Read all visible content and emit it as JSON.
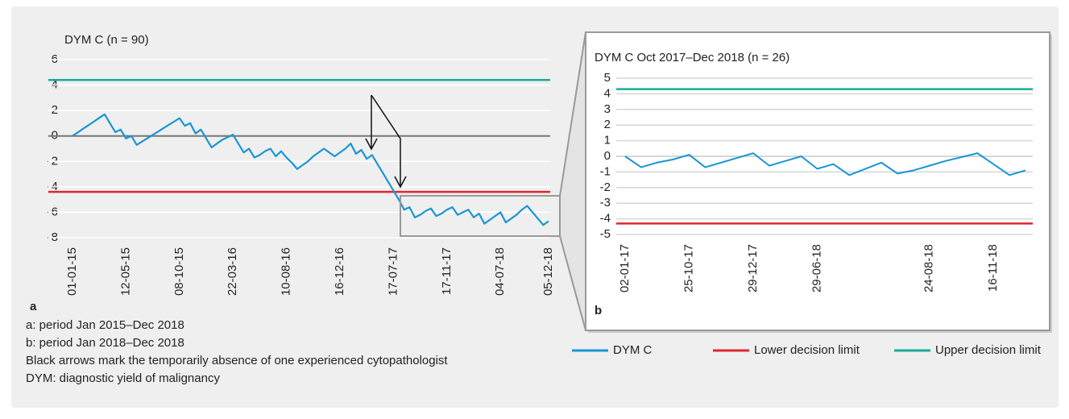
{
  "chart_data": [
    {
      "type": "line",
      "title": "DYM C (n = 90)",
      "panel": "a",
      "categories": [
        "01-01-15",
        null,
        null,
        null,
        null,
        null,
        null,
        null,
        null,
        null,
        "12-05-15",
        null,
        null,
        null,
        null,
        null,
        null,
        null,
        null,
        null,
        "08-10-15",
        null,
        null,
        null,
        null,
        null,
        null,
        null,
        null,
        null,
        "22-03-16",
        null,
        null,
        null,
        null,
        null,
        null,
        null,
        null,
        null,
        "10-08-16",
        null,
        null,
        null,
        null,
        null,
        null,
        null,
        null,
        null,
        "16-12-16",
        null,
        null,
        null,
        null,
        null,
        null,
        null,
        null,
        null,
        "17-07-17",
        null,
        null,
        null,
        null,
        null,
        null,
        null,
        null,
        null,
        "17-11-17",
        null,
        null,
        null,
        null,
        null,
        null,
        null,
        null,
        null,
        "04-07-18",
        null,
        null,
        null,
        null,
        null,
        null,
        null,
        null,
        "05-12-18"
      ],
      "series": [
        {
          "name": "DYM C",
          "color": "#1a96d4",
          "values": [
            0,
            0.28,
            0.57,
            0.85,
            1.13,
            1.42,
            1.7,
            1.0,
            0.3,
            0.5,
            -0.2,
            0.0,
            -0.7,
            -0.44,
            -0.18,
            0.08,
            0.34,
            0.61,
            0.87,
            1.13,
            1.4,
            0.8,
            1.0,
            0.2,
            0.5,
            -0.2,
            -0.9,
            -0.6,
            -0.3,
            -0.1,
            0.1,
            -0.6,
            -1.3,
            -1.0,
            -1.7,
            -1.5,
            -1.2,
            -1.0,
            -1.6,
            -1.2,
            -1.7,
            -2.1,
            -2.6,
            -2.3,
            -2.0,
            -1.6,
            -1.3,
            -1.0,
            -1.3,
            -1.6,
            -1.3,
            -1.0,
            -0.6,
            -1.4,
            -1.1,
            -1.8,
            -1.5,
            -2.2,
            -2.9,
            -3.6,
            -4.3,
            -5.0,
            -5.8,
            -5.6,
            -6.4,
            -6.2,
            -5.9,
            -5.7,
            -6.3,
            -6.1,
            -5.8,
            -5.6,
            -6.2,
            -6.0,
            -5.8,
            -6.4,
            -6.1,
            -6.9,
            -6.6,
            -6.3,
            -6.0,
            -6.8,
            -6.5,
            -6.2,
            -5.8,
            -5.5,
            -6.0,
            -6.5,
            -7.0,
            -6.7
          ]
        }
      ],
      "reference_lines": [
        {
          "name": "Lower decision limit",
          "color": "#e0262f",
          "value": -4.4
        },
        {
          "name": "Upper decision limit",
          "color": "#1aab9b",
          "value": 4.4
        }
      ],
      "ylim": [
        -8,
        6
      ],
      "yticks": [
        -8,
        -6,
        -4,
        -2,
        0,
        2,
        4,
        6
      ],
      "grid": true
    },
    {
      "type": "line",
      "title": "DYM C Oct 2017–Dec 2018 (n = 26)",
      "panel": "b",
      "categories": [
        "02-01-17",
        null,
        null,
        null,
        "25-10-17",
        null,
        null,
        null,
        "29-12-17",
        null,
        null,
        null,
        "29-06-18",
        null,
        null,
        null,
        null,
        null,
        null,
        "24-08-18",
        null,
        null,
        null,
        "16-11-18",
        null,
        null
      ],
      "series": [
        {
          "name": "DYM C",
          "color": "#1a96d4",
          "values": [
            0,
            -0.7,
            -0.4,
            -0.2,
            0.1,
            -0.7,
            -0.4,
            -0.1,
            0.2,
            -0.6,
            -0.3,
            0.0,
            -0.8,
            -0.5,
            -1.2,
            -0.8,
            -0.4,
            -1.1,
            -0.9,
            -0.6,
            -0.3,
            -0.05,
            0.2,
            -0.5,
            -1.2,
            -0.9
          ]
        }
      ],
      "reference_lines": [
        {
          "name": "Lower decision limit",
          "color": "#e0262f",
          "value": -4.3
        },
        {
          "name": "Upper decision limit",
          "color": "#1aab9b",
          "value": 4.3
        }
      ],
      "ylim": [
        -5,
        5
      ],
      "yticks": [
        -5,
        -4,
        -3,
        -2,
        -1,
        0,
        1,
        2,
        3,
        4,
        5
      ],
      "grid": true
    }
  ],
  "notes": [
    "a: period Jan 2015–Dec 2018",
    "b: period Jan 2018–Dec 2018",
    "Black arrows mark the temporarily absence of one experienced cytopathologist",
    "DYM: diagnostic yield of malignancy"
  ]
}
